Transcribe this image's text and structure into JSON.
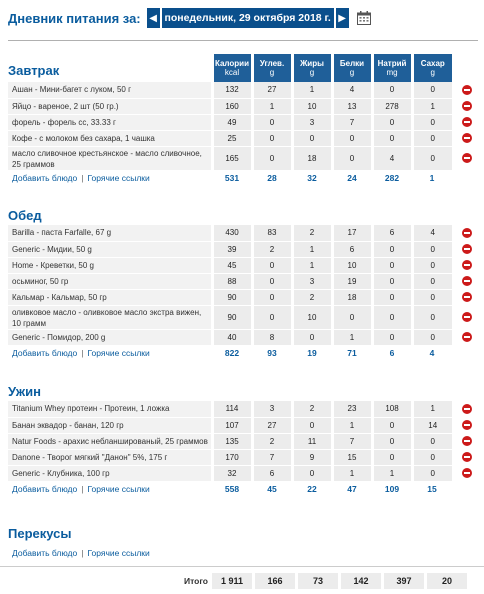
{
  "header": {
    "title": "Дневник питания за:",
    "date": "понедельник, 29 октября 2018 г.",
    "prev": "◀",
    "next": "▶"
  },
  "columns": [
    {
      "name": "Калории",
      "unit": "kcal"
    },
    {
      "name": "Углев.",
      "unit": "g"
    },
    {
      "name": "Жиры",
      "unit": "g"
    },
    {
      "name": "Белки",
      "unit": "g"
    },
    {
      "name": "Натрий",
      "unit": "mg"
    },
    {
      "name": "Сахар",
      "unit": "g"
    }
  ],
  "links": {
    "add": "Добавить блюдо",
    "sep": "|",
    "quick": "Горячие ссылки"
  },
  "meals": [
    {
      "title": "Завтрак",
      "items": [
        {
          "name": "Ашан - Мини-багет с луком, 50 г",
          "v": [
            "132",
            "27",
            "1",
            "4",
            "0",
            "0"
          ]
        },
        {
          "name": "Яйцо - вареное, 2 шт (50 гр.)",
          "v": [
            "160",
            "1",
            "10",
            "13",
            "278",
            "1"
          ]
        },
        {
          "name": "форель - форель сс, 33.33 г",
          "v": [
            "49",
            "0",
            "3",
            "7",
            "0",
            "0"
          ]
        },
        {
          "name": "Кофе - с молоком без сахара, 1 чашка",
          "v": [
            "25",
            "0",
            "0",
            "0",
            "0",
            "0"
          ]
        },
        {
          "name": "масло сливочное крестьянское - масло сливочное, 25 граммов",
          "v": [
            "165",
            "0",
            "18",
            "0",
            "4",
            "0"
          ]
        }
      ],
      "totals": [
        "531",
        "28",
        "32",
        "24",
        "282",
        "1"
      ]
    },
    {
      "title": "Обед",
      "items": [
        {
          "name": "Barilla - паста Farfalle, 67 g",
          "v": [
            "430",
            "83",
            "2",
            "17",
            "6",
            "4"
          ]
        },
        {
          "name": "Generic - Мидии, 50 g",
          "v": [
            "39",
            "2",
            "1",
            "6",
            "0",
            "0"
          ]
        },
        {
          "name": "Home - Креветки, 50 g",
          "v": [
            "45",
            "0",
            "1",
            "10",
            "0",
            "0"
          ]
        },
        {
          "name": "осьминог, 50 гр",
          "v": [
            "88",
            "0",
            "3",
            "19",
            "0",
            "0"
          ]
        },
        {
          "name": "Кальмар - Кальмар, 50 гр",
          "v": [
            "90",
            "0",
            "2",
            "18",
            "0",
            "0"
          ]
        },
        {
          "name": "оливковое масло - оливковое масло экстра вижен, 10 грамм",
          "v": [
            "90",
            "0",
            "10",
            "0",
            "0",
            "0"
          ]
        },
        {
          "name": "Generic - Помидор, 200 g",
          "v": [
            "40",
            "8",
            "0",
            "1",
            "0",
            "0"
          ]
        }
      ],
      "totals": [
        "822",
        "93",
        "19",
        "71",
        "6",
        "4"
      ]
    },
    {
      "title": "Ужин",
      "items": [
        {
          "name": "Titanium Whey протеин - Протеин, 1 ложка",
          "v": [
            "114",
            "3",
            "2",
            "23",
            "108",
            "1"
          ]
        },
        {
          "name": "Банан эквадор - банан, 120 гр",
          "v": [
            "107",
            "27",
            "0",
            "1",
            "0",
            "14"
          ]
        },
        {
          "name": "Natur Foods - арахис небланшированый, 25 граммов",
          "v": [
            "135",
            "2",
            "11",
            "7",
            "0",
            "0"
          ]
        },
        {
          "name": "Danone - Творог мягкий \"Данон\" 5%, 175 г",
          "v": [
            "170",
            "7",
            "9",
            "15",
            "0",
            "0"
          ]
        },
        {
          "name": "Generic - Клубника, 100 гр",
          "v": [
            "32",
            "6",
            "0",
            "1",
            "1",
            "0"
          ]
        }
      ],
      "totals": [
        "558",
        "45",
        "22",
        "47",
        "109",
        "15"
      ]
    }
  ],
  "snacks": {
    "title": "Перекусы"
  },
  "grand_total": {
    "label": "Итого",
    "values": [
      "1 911",
      "166",
      "73",
      "142",
      "397",
      "20"
    ]
  },
  "colors": {
    "accent": "#0a5c9e",
    "header_bg": "#1f5f99",
    "delete": "#cc1a1a"
  }
}
